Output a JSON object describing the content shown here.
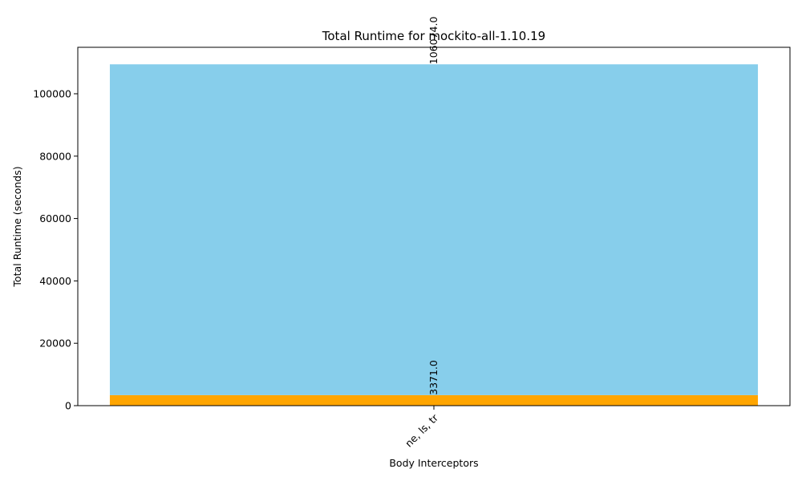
{
  "chart_data": {
    "type": "bar",
    "stacked": true,
    "title": "Total Runtime for mockito-all-1.10.19",
    "xlabel": "Body Interceptors",
    "ylabel": "Total Runtime (seconds)",
    "categories": [
      "ne, ls, tr"
    ],
    "ylim": [
      0,
      114900
    ],
    "yticks": [
      0,
      20000,
      40000,
      60000,
      80000,
      100000
    ],
    "grid": false,
    "legend": "none",
    "series": [
      {
        "values": [
          3371.0
        ],
        "color": "#ffa500",
        "labels": [
          "3371.0"
        ]
      },
      {
        "values": [
          106074.0
        ],
        "color": "#87ceeb",
        "labels": [
          "106074.0"
        ]
      }
    ]
  }
}
